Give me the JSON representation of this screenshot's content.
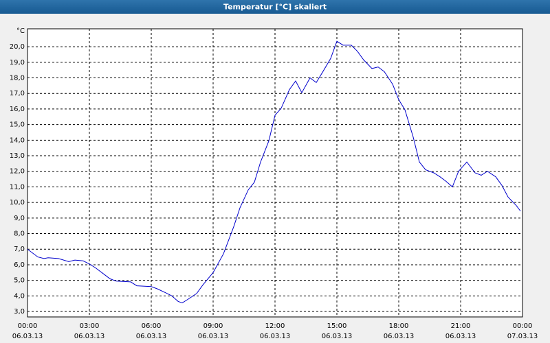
{
  "chart_data": {
    "type": "line",
    "title": "Temperatur [°C] skaliert",
    "ylabel": "°C",
    "x": [
      0,
      0.5,
      0.8,
      1,
      1.5,
      2,
      2.3,
      2.7,
      3,
      3.3,
      3.7,
      4,
      4.3,
      5,
      5.3,
      6,
      6.3,
      6.7,
      7,
      7.3,
      7.5,
      7.8,
      8.2,
      8.5,
      9,
      9.5,
      10,
      10.3,
      10.7,
      11,
      11.3,
      11.7,
      12,
      12.3,
      12.7,
      13,
      13.3,
      13.7,
      14,
      14.3,
      14.7,
      15,
      15.3,
      15.7,
      16,
      16.3,
      16.7,
      17,
      17.3,
      17.7,
      18,
      18.3,
      18.7,
      19,
      19.3,
      19.7,
      20,
      20.3,
      20.6,
      20.9,
      21.3,
      21.7,
      22,
      22.3,
      22.7,
      23,
      23.3,
      23.7,
      23.9
    ],
    "series": [
      {
        "name": "Temperatur",
        "color": "#0000cc",
        "values": [
          7.0,
          6.5,
          6.4,
          6.45,
          6.4,
          6.2,
          6.3,
          6.25,
          6.05,
          5.8,
          5.4,
          5.1,
          4.95,
          4.9,
          4.65,
          4.6,
          4.45,
          4.2,
          4.0,
          3.65,
          3.55,
          3.8,
          4.15,
          4.7,
          5.5,
          6.7,
          8.45,
          9.65,
          10.8,
          11.3,
          12.6,
          13.95,
          15.6,
          16.05,
          17.25,
          17.8,
          17.05,
          18.0,
          17.7,
          18.35,
          19.25,
          20.35,
          20.1,
          20.1,
          19.7,
          19.15,
          18.6,
          18.7,
          18.4,
          17.6,
          16.6,
          15.95,
          14.2,
          12.6,
          12.1,
          11.9,
          11.65,
          11.35,
          11.0,
          12.0,
          12.6,
          11.9,
          11.75,
          12.0,
          11.65,
          11.1,
          10.35,
          9.8,
          9.45
        ]
      }
    ],
    "xlim": [
      0,
      24
    ],
    "xticks": [
      {
        "value": 0,
        "label": "00:00",
        "date": "06.03.13"
      },
      {
        "value": 3,
        "label": "03:00",
        "date": "06.03.13"
      },
      {
        "value": 6,
        "label": "06:00",
        "date": "06.03.13"
      },
      {
        "value": 9,
        "label": "09:00",
        "date": "06.03.13"
      },
      {
        "value": 12,
        "label": "12:00",
        "date": "06.03.13"
      },
      {
        "value": 15,
        "label": "15:00",
        "date": "06.03.13"
      },
      {
        "value": 18,
        "label": "18:00",
        "date": "06.03.13"
      },
      {
        "value": 21,
        "label": "21:00",
        "date": "06.03.13"
      },
      {
        "value": 24,
        "label": "00:00",
        "date": "07.03.13"
      }
    ],
    "ylim": [
      2.65,
      21.15
    ],
    "yticks": [
      {
        "value": 3,
        "label": "3,0"
      },
      {
        "value": 4,
        "label": "4,0"
      },
      {
        "value": 5,
        "label": "5,0"
      },
      {
        "value": 6,
        "label": "6,0"
      },
      {
        "value": 7,
        "label": "7,0"
      },
      {
        "value": 8,
        "label": "8,0"
      },
      {
        "value": 9,
        "label": "9,0"
      },
      {
        "value": 10,
        "label": "10,0"
      },
      {
        "value": 11,
        "label": "11,0"
      },
      {
        "value": 12,
        "label": "12,0"
      },
      {
        "value": 13,
        "label": "13,0"
      },
      {
        "value": 14,
        "label": "14,0"
      },
      {
        "value": 15,
        "label": "15,0"
      },
      {
        "value": 16,
        "label": "16,0"
      },
      {
        "value": 17,
        "label": "17,0"
      },
      {
        "value": 18,
        "label": "18,0"
      },
      {
        "value": 19,
        "label": "19,0"
      },
      {
        "value": 20,
        "label": "20,0"
      }
    ],
    "grid": true
  }
}
